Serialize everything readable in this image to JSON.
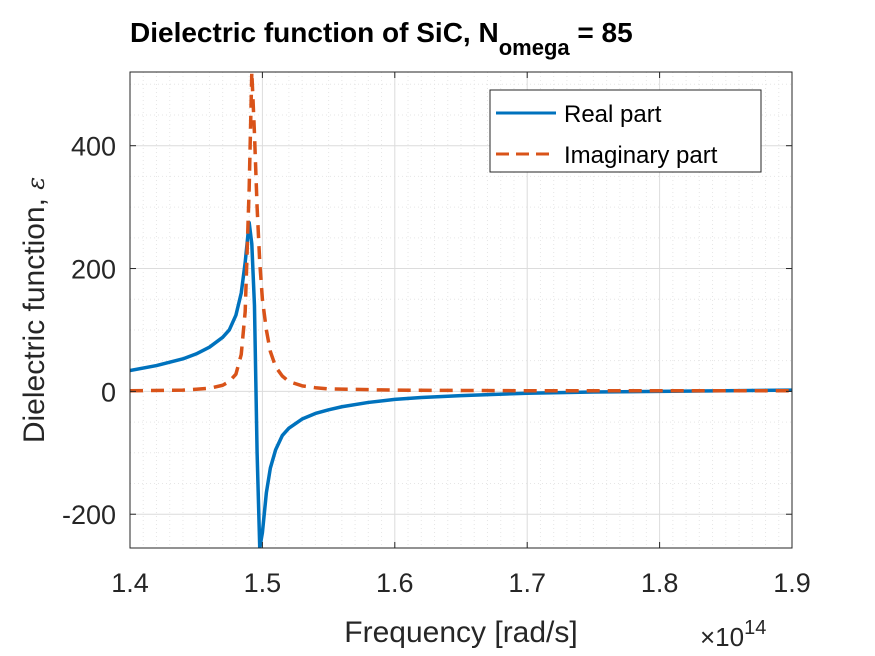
{
  "chart_data": {
    "type": "line",
    "title": "Dielectric function of SiC, N",
    "title_subscript": "omega",
    "title_suffix": " = 85",
    "xlabel": "Frequency [rad/s]",
    "ylabel": "Dielectric function, ",
    "ylabel_symbol": "ε",
    "x_exponent_base": "×10",
    "x_exponent_power": "14",
    "xlim": [
      1.4,
      1.9
    ],
    "ylim": [
      -255,
      520
    ],
    "xticks": [
      1.4,
      1.5,
      1.6,
      1.7,
      1.8,
      1.9
    ],
    "xtick_labels": [
      "1.4",
      "1.5",
      "1.6",
      "1.7",
      "1.8",
      "1.9"
    ],
    "yticks": [
      -200,
      0,
      200,
      400
    ],
    "ytick_labels": [
      "-200",
      "0",
      "200",
      "400"
    ],
    "grid": "on",
    "minor_grid": "on",
    "legend_position": "top-right",
    "series": [
      {
        "name": "Real part",
        "color": "#0072BD",
        "style": "solid",
        "x": [
          1.4,
          1.42,
          1.44,
          1.45,
          1.46,
          1.47,
          1.475,
          1.48,
          1.484,
          1.487,
          1.49,
          1.492,
          1.494,
          1.496,
          1.498,
          1.5,
          1.503,
          1.506,
          1.51,
          1.515,
          1.52,
          1.53,
          1.54,
          1.55,
          1.56,
          1.58,
          1.6,
          1.62,
          1.65,
          1.7,
          1.75,
          1.8,
          1.85,
          1.9
        ],
        "values": [
          34,
          42,
          53,
          61,
          72,
          88,
          100,
          124,
          160,
          210,
          275,
          240,
          140,
          -100,
          -255,
          -230,
          -165,
          -125,
          -95,
          -72,
          -60,
          -45,
          -36,
          -30,
          -25,
          -18,
          -13,
          -10,
          -7,
          -3,
          -1,
          0,
          1,
          2
        ]
      },
      {
        "name": "Imaginary part",
        "color": "#D95319",
        "style": "dashed",
        "x": [
          1.4,
          1.44,
          1.46,
          1.47,
          1.475,
          1.48,
          1.484,
          1.487,
          1.49,
          1.492,
          1.494,
          1.496,
          1.498,
          1.5,
          1.503,
          1.506,
          1.51,
          1.515,
          1.52,
          1.53,
          1.54,
          1.55,
          1.6,
          1.7,
          1.8,
          1.9
        ],
        "values": [
          1,
          2,
          5,
          10,
          16,
          28,
          60,
          130,
          330,
          520,
          420,
          300,
          210,
          150,
          100,
          65,
          40,
          25,
          16,
          9,
          6,
          4,
          2,
          1,
          1,
          1
        ]
      }
    ]
  }
}
